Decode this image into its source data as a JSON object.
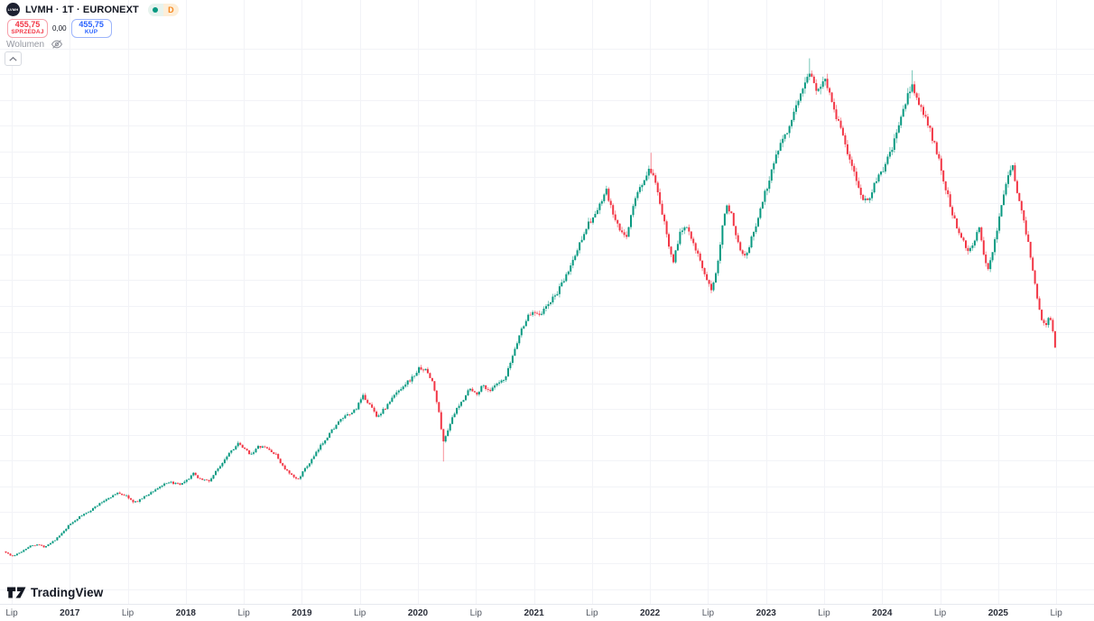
{
  "header": {
    "logo_text": "LVMH",
    "symbol_title": "LVMH · 1T · EURONEXT",
    "status": {
      "market_dot_color": "#089981",
      "delayed_label": "D",
      "delayed_color": "#f7871e"
    },
    "sell_button": {
      "price": "455,75",
      "label": "SPRZEDAJ",
      "color": "#f23645"
    },
    "spread": "0,00",
    "buy_button": {
      "price": "455,75",
      "label": "KUP",
      "color": "#2962ff"
    },
    "volume_label": "Wolumen"
  },
  "watermark": {
    "brand": "TradingView"
  },
  "chart_data": {
    "type": "candlestick",
    "symbol": "LVMH",
    "interval": "1T",
    "exchange": "EURONEXT",
    "last_price": 455.75,
    "price_axis_visible": false,
    "grid_visible": true,
    "grid": {
      "horizontal_price_step": 40,
      "horizontal_price_min": 80,
      "horizontal_price_max": 920,
      "vertical_at_each_tick": true
    },
    "time_range": [
      2016.44,
      2025.5
    ],
    "price_range_approx": [
      120,
      910
    ],
    "colors": {
      "up": "#089981",
      "down": "#f23645",
      "grid": "#f2f3f7"
    },
    "x_ticks": [
      {
        "t": 2016.5,
        "label": "Lip",
        "major": false
      },
      {
        "t": 2017.0,
        "label": "2017",
        "major": true
      },
      {
        "t": 2017.5,
        "label": "Lip",
        "major": false
      },
      {
        "t": 2018.0,
        "label": "2018",
        "major": true
      },
      {
        "t": 2018.5,
        "label": "Lip",
        "major": false
      },
      {
        "t": 2019.0,
        "label": "2019",
        "major": true
      },
      {
        "t": 2019.5,
        "label": "Lip",
        "major": false
      },
      {
        "t": 2020.0,
        "label": "2020",
        "major": true
      },
      {
        "t": 2020.5,
        "label": "Lip",
        "major": false
      },
      {
        "t": 2021.0,
        "label": "2021",
        "major": true
      },
      {
        "t": 2021.5,
        "label": "Lip",
        "major": false
      },
      {
        "t": 2022.0,
        "label": "2022",
        "major": true
      },
      {
        "t": 2022.5,
        "label": "Lip",
        "major": false
      },
      {
        "t": 2023.0,
        "label": "2023",
        "major": true
      },
      {
        "t": 2023.5,
        "label": "Lip",
        "major": false
      },
      {
        "t": 2024.0,
        "label": "2024",
        "major": true
      },
      {
        "t": 2024.5,
        "label": "Lip",
        "major": false
      },
      {
        "t": 2025.0,
        "label": "2025",
        "major": true
      },
      {
        "t": 2025.5,
        "label": "Lip",
        "major": false
      }
    ],
    "anchors_weekly_close": [
      [
        2016.44,
        139
      ],
      [
        2016.5,
        131
      ],
      [
        2016.56,
        136
      ],
      [
        2016.65,
        147
      ],
      [
        2016.72,
        150
      ],
      [
        2016.78,
        146
      ],
      [
        2016.88,
        158
      ],
      [
        2016.95,
        170
      ],
      [
        2017.0,
        181
      ],
      [
        2017.08,
        192
      ],
      [
        2017.17,
        202
      ],
      [
        2017.25,
        212
      ],
      [
        2017.33,
        222
      ],
      [
        2017.42,
        230
      ],
      [
        2017.5,
        224
      ],
      [
        2017.55,
        214
      ],
      [
        2017.63,
        222
      ],
      [
        2017.72,
        233
      ],
      [
        2017.8,
        242
      ],
      [
        2017.88,
        246
      ],
      [
        2017.95,
        242
      ],
      [
        2018.0,
        247
      ],
      [
        2018.06,
        260
      ],
      [
        2018.12,
        252
      ],
      [
        2018.2,
        248
      ],
      [
        2018.28,
        268
      ],
      [
        2018.37,
        292
      ],
      [
        2018.45,
        306
      ],
      [
        2018.5,
        298
      ],
      [
        2018.56,
        290
      ],
      [
        2018.63,
        302
      ],
      [
        2018.7,
        299
      ],
      [
        2018.78,
        288
      ],
      [
        2018.84,
        270
      ],
      [
        2018.9,
        258
      ],
      [
        2018.96,
        250
      ],
      [
        2019.02,
        265
      ],
      [
        2019.1,
        285
      ],
      [
        2019.18,
        308
      ],
      [
        2019.27,
        330
      ],
      [
        2019.35,
        346
      ],
      [
        2019.42,
        352
      ],
      [
        2019.47,
        362
      ],
      [
        2019.53,
        380
      ],
      [
        2019.58,
        368
      ],
      [
        2019.65,
        348
      ],
      [
        2019.72,
        362
      ],
      [
        2019.8,
        382
      ],
      [
        2019.88,
        398
      ],
      [
        2019.95,
        408
      ],
      [
        2020.02,
        425
      ],
      [
        2020.08,
        418
      ],
      [
        2020.13,
        400
      ],
      [
        2020.18,
        355
      ],
      [
        2020.22,
        308
      ],
      [
        2020.27,
        335
      ],
      [
        2020.33,
        358
      ],
      [
        2020.38,
        372
      ],
      [
        2020.44,
        392
      ],
      [
        2020.5,
        383
      ],
      [
        2020.56,
        397
      ],
      [
        2020.62,
        388
      ],
      [
        2020.68,
        398
      ],
      [
        2020.75,
        405
      ],
      [
        2020.82,
        445
      ],
      [
        2020.88,
        478
      ],
      [
        2020.94,
        502
      ],
      [
        2021.0,
        512
      ],
      [
        2021.06,
        508
      ],
      [
        2021.12,
        522
      ],
      [
        2021.19,
        538
      ],
      [
        2021.25,
        556
      ],
      [
        2021.31,
        580
      ],
      [
        2021.37,
        605
      ],
      [
        2021.44,
        640
      ],
      [
        2021.5,
        655
      ],
      [
        2021.56,
        672
      ],
      [
        2021.62,
        700
      ],
      [
        2021.67,
        668
      ],
      [
        2021.73,
        640
      ],
      [
        2021.79,
        624
      ],
      [
        2021.85,
        672
      ],
      [
        2021.9,
        700
      ],
      [
        2021.96,
        718
      ],
      [
        2022.0,
        733
      ],
      [
        2022.04,
        712
      ],
      [
        2022.1,
        668
      ],
      [
        2022.15,
        625
      ],
      [
        2022.2,
        590
      ],
      [
        2022.25,
        628
      ],
      [
        2022.31,
        648
      ],
      [
        2022.37,
        622
      ],
      [
        2022.43,
        590
      ],
      [
        2022.48,
        560
      ],
      [
        2022.53,
        545
      ],
      [
        2022.58,
        585
      ],
      [
        2022.62,
        640
      ],
      [
        2022.66,
        682
      ],
      [
        2022.71,
        655
      ],
      [
        2022.77,
        612
      ],
      [
        2022.82,
        598
      ],
      [
        2022.87,
        622
      ],
      [
        2022.92,
        648
      ],
      [
        2022.96,
        678
      ],
      [
        2023.02,
        712
      ],
      [
        2023.08,
        752
      ],
      [
        2023.14,
        782
      ],
      [
        2023.21,
        800
      ],
      [
        2023.27,
        832
      ],
      [
        2023.33,
        868
      ],
      [
        2023.37,
        885
      ],
      [
        2023.42,
        862
      ],
      [
        2023.46,
        852
      ],
      [
        2023.5,
        876
      ],
      [
        2023.54,
        858
      ],
      [
        2023.6,
        818
      ],
      [
        2023.66,
        788
      ],
      [
        2023.71,
        752
      ],
      [
        2023.77,
        718
      ],
      [
        2023.82,
        692
      ],
      [
        2023.87,
        682
      ],
      [
        2023.92,
        702
      ],
      [
        2023.97,
        722
      ],
      [
        2024.02,
        735
      ],
      [
        2024.08,
        762
      ],
      [
        2024.15,
        802
      ],
      [
        2024.21,
        842
      ],
      [
        2024.26,
        862
      ],
      [
        2024.31,
        838
      ],
      [
        2024.37,
        812
      ],
      [
        2024.42,
        788
      ],
      [
        2024.48,
        752
      ],
      [
        2024.53,
        716
      ],
      [
        2024.58,
        682
      ],
      [
        2024.63,
        648
      ],
      [
        2024.69,
        628
      ],
      [
        2024.74,
        605
      ],
      [
        2024.79,
        618
      ],
      [
        2024.83,
        645
      ],
      [
        2024.88,
        592
      ],
      [
        2024.92,
        578
      ],
      [
        2024.96,
        615
      ],
      [
        2025.0,
        648
      ],
      [
        2025.04,
        688
      ],
      [
        2025.08,
        722
      ],
      [
        2025.12,
        738
      ],
      [
        2025.16,
        702
      ],
      [
        2025.21,
        662
      ],
      [
        2025.25,
        625
      ],
      [
        2025.29,
        588
      ],
      [
        2025.33,
        540
      ],
      [
        2025.37,
        500
      ],
      [
        2025.41,
        492
      ],
      [
        2025.44,
        505
      ],
      [
        2025.47,
        482
      ],
      [
        2025.5,
        456
      ]
    ],
    "extremes": [
      {
        "t": 2020.22,
        "type": "low",
        "price": 278.5
      },
      {
        "t": 2022.0,
        "type": "high",
        "price": 758.0
      },
      {
        "t": 2023.37,
        "type": "high",
        "price": 904.6
      },
      {
        "t": 2024.26,
        "type": "high",
        "price": 886.0
      }
    ]
  }
}
